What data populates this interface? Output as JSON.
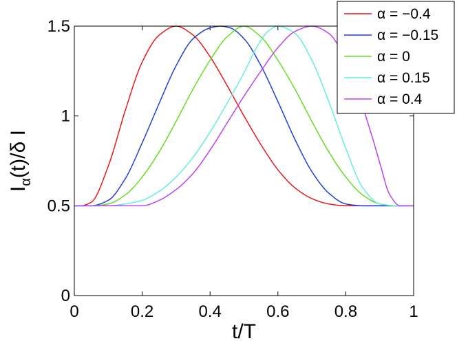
{
  "chart_data": {
    "type": "line",
    "xlabel": "t/T",
    "ylabel_main": "I",
    "ylabel_sub": "α",
    "ylabel_rest": "(t)/δ I",
    "xlim": [
      0,
      1
    ],
    "ylim": [
      0,
      1.5
    ],
    "x_ticks": [
      0,
      0.2,
      0.4,
      0.6,
      0.8,
      1
    ],
    "x_tick_labels": [
      "0",
      "0.2",
      "0.4",
      "0.6",
      "0.8",
      "1"
    ],
    "y_ticks": [
      0,
      0.5,
      1,
      1.5
    ],
    "y_tick_labels": [
      "0",
      "0.5",
      "1",
      "1.5"
    ],
    "grid": false,
    "legend_position": "top-right",
    "series": [
      {
        "name": "α = −0.4",
        "color": "#e41a1c",
        "x": [
          0,
          0.02,
          0.05,
          0.1,
          0.15,
          0.2,
          0.25,
          0.3,
          0.35,
          0.4,
          0.45,
          0.5,
          0.55,
          0.6,
          0.65,
          0.7,
          0.75,
          0.8,
          0.9,
          1
        ],
        "y": [
          0.5,
          0.5,
          0.52,
          0.72,
          1.03,
          1.3,
          1.45,
          1.5,
          1.45,
          1.33,
          1.17,
          1.0,
          0.84,
          0.7,
          0.6,
          0.54,
          0.51,
          0.5,
          0.5,
          0.5
        ]
      },
      {
        "name": "α = −0.15",
        "color": "#1f3fd6",
        "x": [
          0,
          0.05,
          0.1,
          0.15,
          0.2,
          0.25,
          0.3,
          0.35,
          0.4,
          0.43,
          0.46,
          0.5,
          0.55,
          0.6,
          0.65,
          0.7,
          0.75,
          0.8,
          0.85,
          0.9,
          1
        ],
        "y": [
          0.5,
          0.5,
          0.53,
          0.65,
          0.85,
          1.07,
          1.28,
          1.43,
          1.49,
          1.5,
          1.49,
          1.43,
          1.28,
          1.08,
          0.87,
          0.69,
          0.57,
          0.51,
          0.5,
          0.5,
          0.5
        ]
      },
      {
        "name": "α = 0",
        "color": "#66dd22",
        "x": [
          0,
          0.05,
          0.1,
          0.15,
          0.2,
          0.25,
          0.3,
          0.35,
          0.4,
          0.45,
          0.5,
          0.55,
          0.6,
          0.65,
          0.7,
          0.75,
          0.8,
          0.85,
          0.9,
          0.95,
          1
        ],
        "y": [
          0.5,
          0.5,
          0.51,
          0.56,
          0.66,
          0.8,
          0.97,
          1.15,
          1.31,
          1.44,
          1.5,
          1.44,
          1.31,
          1.15,
          0.97,
          0.8,
          0.66,
          0.56,
          0.51,
          0.5,
          0.5
        ]
      },
      {
        "name": "α = 0.15",
        "color": "#66eedd",
        "x": [
          0,
          0.1,
          0.15,
          0.2,
          0.25,
          0.3,
          0.35,
          0.4,
          0.45,
          0.5,
          0.54,
          0.57,
          0.6,
          0.65,
          0.7,
          0.75,
          0.8,
          0.85,
          0.9,
          0.95,
          1
        ],
        "y": [
          0.5,
          0.5,
          0.51,
          0.53,
          0.58,
          0.66,
          0.77,
          0.91,
          1.07,
          1.24,
          1.39,
          1.47,
          1.5,
          1.46,
          1.31,
          1.08,
          0.82,
          0.6,
          0.51,
          0.5,
          0.5
        ]
      },
      {
        "name": "α = 0.4",
        "color": "#bb44ee",
        "x": [
          0,
          0.15,
          0.2,
          0.25,
          0.3,
          0.35,
          0.4,
          0.45,
          0.5,
          0.55,
          0.6,
          0.65,
          0.7,
          0.75,
          0.8,
          0.85,
          0.88,
          0.9,
          0.93,
          0.96,
          1
        ],
        "y": [
          0.5,
          0.5,
          0.5,
          0.53,
          0.59,
          0.68,
          0.81,
          0.96,
          1.11,
          1.25,
          1.38,
          1.47,
          1.5,
          1.46,
          1.31,
          1.05,
          0.87,
          0.74,
          0.56,
          0.5,
          0.5
        ]
      }
    ]
  }
}
